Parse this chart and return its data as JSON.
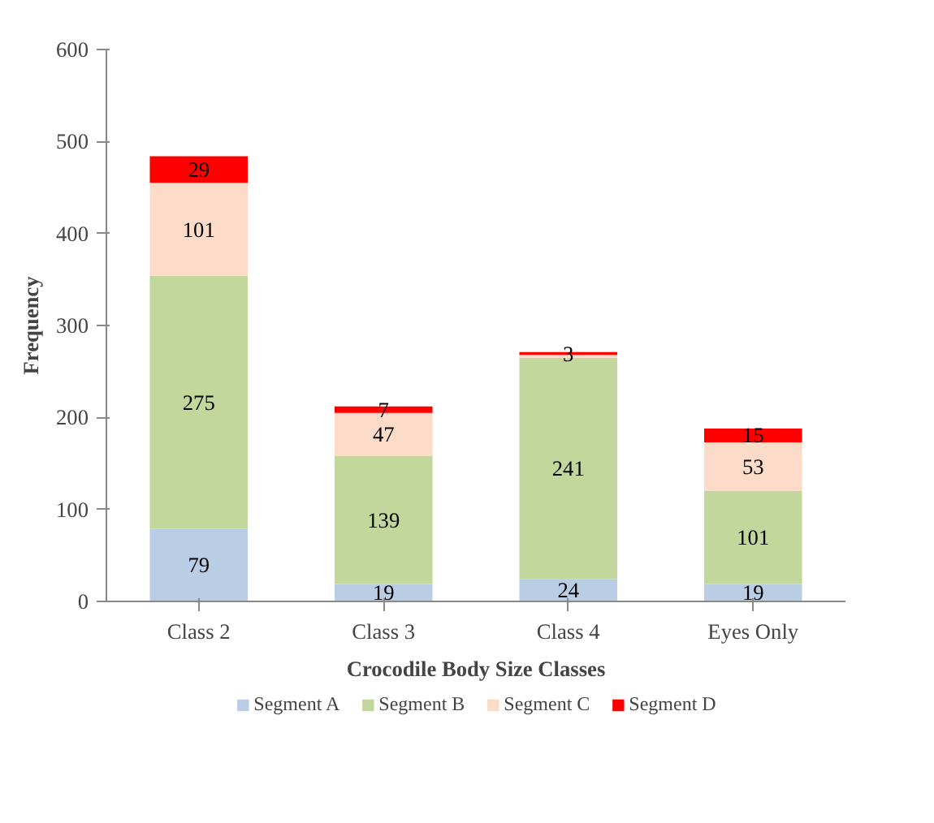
{
  "chart_data": {
    "type": "bar",
    "stacked": true,
    "xlabel": "Crocodile Body Size Classes",
    "ylabel": "Frequency",
    "categories": [
      "Class 2",
      "Class 3",
      "Class 4",
      "Eyes Only"
    ],
    "series": [
      {
        "name": "Segment A",
        "color": "#b9cde5",
        "values": [
          79,
          19,
          24,
          19
        ],
        "value_labels": [
          "79",
          "19",
          "24",
          "19"
        ]
      },
      {
        "name": "Segment B",
        "color": "#c3d69b",
        "values": [
          275,
          139,
          241,
          101
        ],
        "value_labels": [
          "275",
          "139",
          "241",
          "101"
        ]
      },
      {
        "name": "Segment C",
        "color": "#fcdcc8",
        "values": [
          101,
          47,
          3,
          53
        ],
        "value_labels": [
          "101",
          "47",
          null,
          "53"
        ]
      },
      {
        "name": "Segment D",
        "color": "#ff0000",
        "values": [
          29,
          7,
          3,
          15
        ],
        "value_labels": [
          "29",
          "7",
          "3",
          "15"
        ]
      }
    ],
    "ylim": [
      0,
      600
    ],
    "yticks": [
      0,
      100,
      200,
      300,
      400,
      500,
      600
    ],
    "legend": "bottom"
  }
}
